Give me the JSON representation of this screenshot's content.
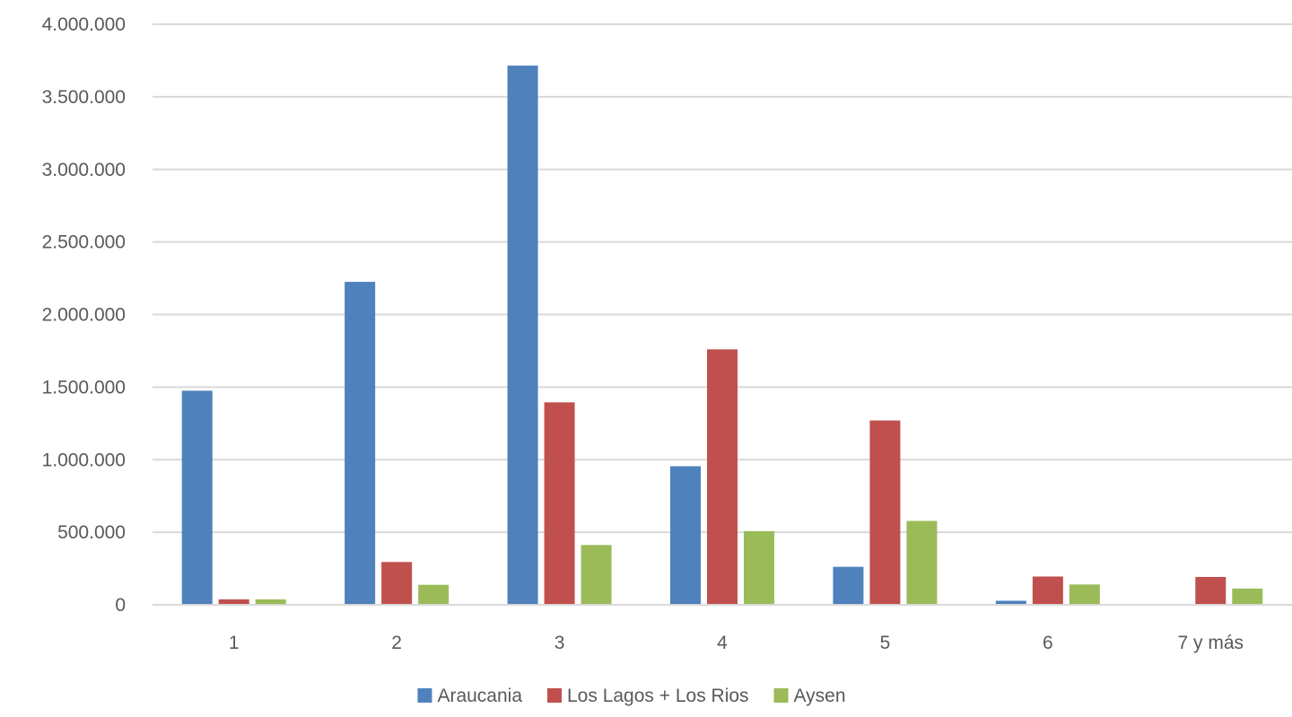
{
  "chart_data": {
    "type": "bar",
    "title": "",
    "xlabel": "",
    "ylabel": "",
    "categories": [
      "1",
      "2",
      "3",
      "4",
      "5",
      "6",
      "7 y más"
    ],
    "series": [
      {
        "name": "Araucania",
        "color": "#4f81bd",
        "values": [
          1475000,
          2225000,
          3715000,
          955000,
          262000,
          28000,
          0
        ]
      },
      {
        "name": "Los Lagos + Los Rios",
        "color": "#c0504d",
        "values": [
          38000,
          295000,
          1395000,
          1760000,
          1270000,
          195000,
          192000
        ]
      },
      {
        "name": "Aysen",
        "color": "#9bbb59",
        "values": [
          38000,
          138000,
          412000,
          508000,
          578000,
          140000,
          112000
        ]
      }
    ],
    "ylim": [
      0,
      4000000
    ],
    "yticks": [
      0,
      500000,
      1000000,
      1500000,
      2000000,
      2500000,
      3000000,
      3500000,
      4000000
    ],
    "ytick_labels": [
      "0",
      "500.000",
      "1.000.000",
      "1.500.000",
      "2.000.000",
      "2.500.000",
      "3.000.000",
      "3.500.000",
      "4.000.000"
    ],
    "grid": true,
    "gridline_color": "#d9d9d9",
    "legend_position": "bottom"
  }
}
